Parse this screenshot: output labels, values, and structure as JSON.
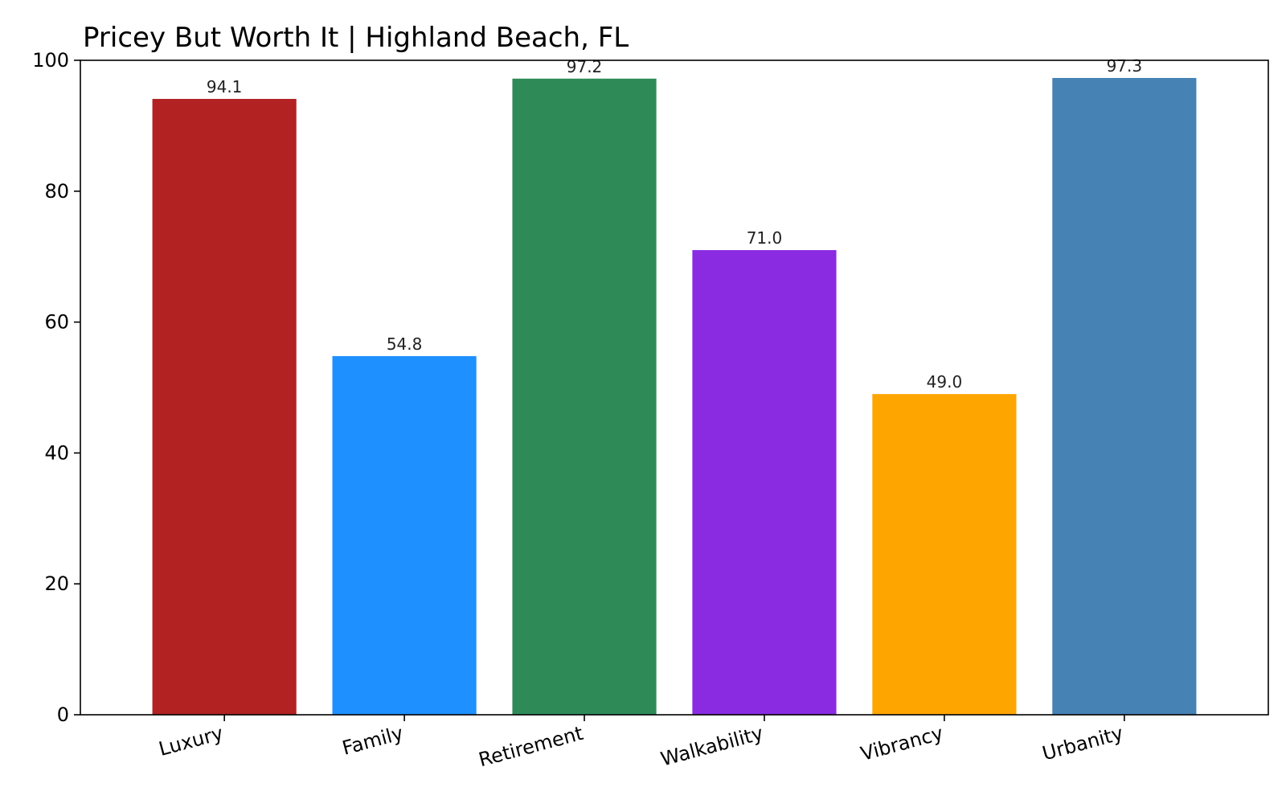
{
  "chart_data": {
    "type": "bar",
    "title": "Pricey But Worth It | Highland Beach, FL",
    "xlabel": "",
    "ylabel": "",
    "categories": [
      "Luxury",
      "Family",
      "Retirement",
      "Walkability",
      "Vibrancy",
      "Urbanity"
    ],
    "values": [
      94.1,
      54.8,
      97.2,
      71.0,
      49.0,
      97.3
    ],
    "value_labels": [
      "94.1",
      "54.8",
      "97.2",
      "71.0",
      "49.0",
      "97.3"
    ],
    "colors": [
      "#b22222",
      "#1e90ff",
      "#2e8b57",
      "#8a2be2",
      "#ffa500",
      "#4682b4"
    ],
    "ylim": [
      0,
      100
    ],
    "yticks": [
      0,
      20,
      40,
      60,
      80,
      100
    ],
    "ytick_labels": [
      "0",
      "20",
      "40",
      "60",
      "80",
      "100"
    ],
    "grid": false,
    "legend": "none"
  }
}
